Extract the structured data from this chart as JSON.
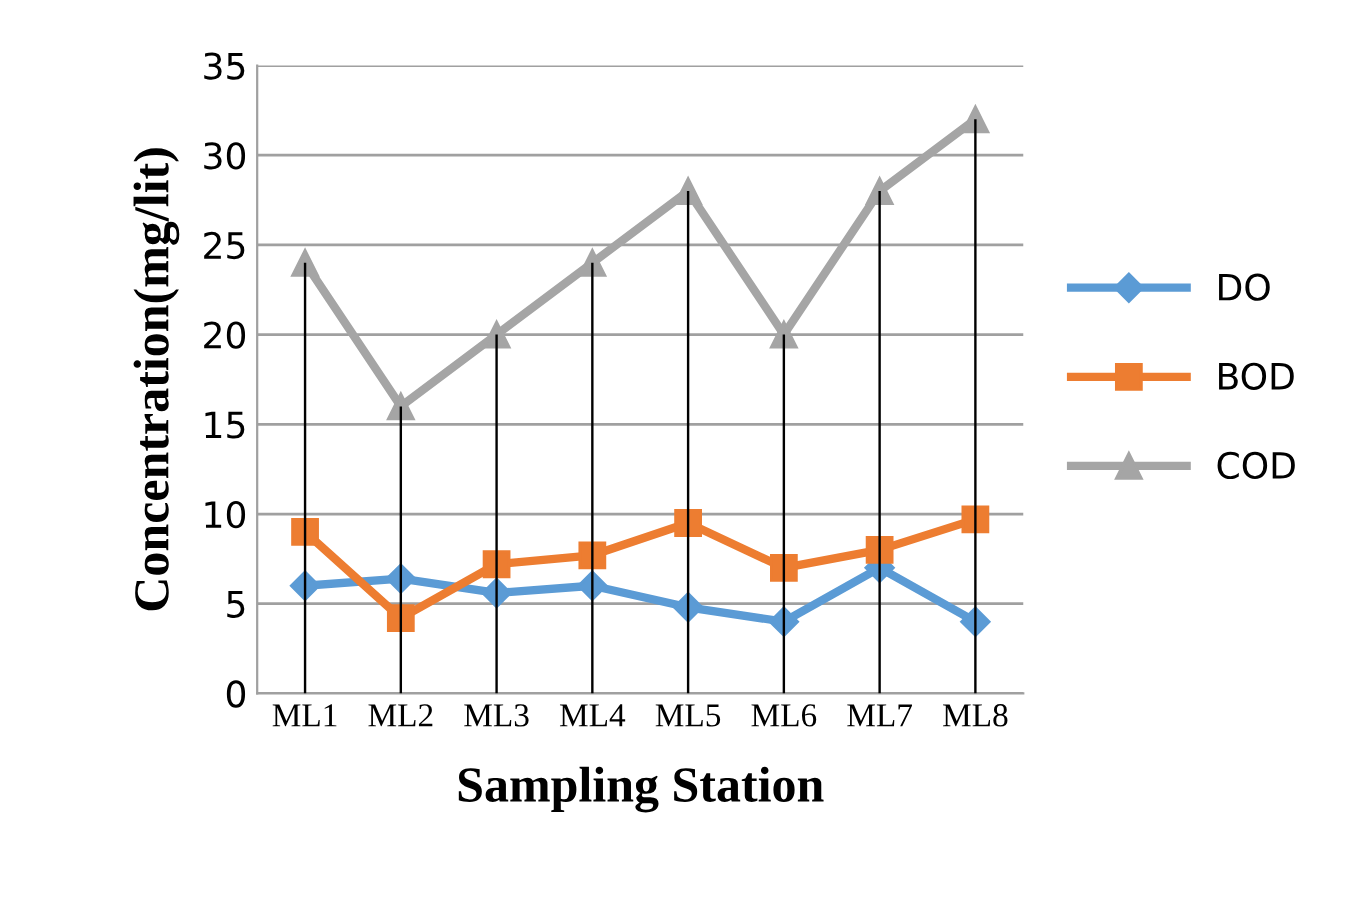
{
  "chart_data": {
    "type": "line",
    "xlabel": "Sampling Station",
    "ylabel": "Concentration(mg/lit)",
    "categories": [
      "ML1",
      "ML2",
      "ML3",
      "ML4",
      "ML5",
      "ML6",
      "ML7",
      "ML8"
    ],
    "series": [
      {
        "type": "bar",
        "color": "#000000",
        "values": [
          24,
          16,
          20,
          24,
          28,
          20,
          28,
          32
        ]
      },
      {
        "name": "DO",
        "color": "#5b9bd5",
        "marker": "diamond",
        "values": [
          6.0,
          6.4,
          5.6,
          6.0,
          4.8,
          4.0,
          7.0,
          4.0
        ]
      },
      {
        "name": "BOD",
        "color": "#ed7d31",
        "marker": "square",
        "values": [
          9.0,
          4.2,
          7.2,
          7.7,
          9.5,
          7.0,
          8.0,
          9.7
        ]
      },
      {
        "name": "COD",
        "color": "#a5a5a5",
        "marker": "triangle",
        "values": [
          24,
          16,
          20,
          24,
          28,
          20,
          28,
          32
        ]
      }
    ],
    "ylim": [
      0,
      35
    ],
    "yticks": [
      0,
      5,
      10,
      15,
      20,
      25,
      30,
      35
    ],
    "grid": "y",
    "legend": "right",
    "line_style": "solid"
  }
}
